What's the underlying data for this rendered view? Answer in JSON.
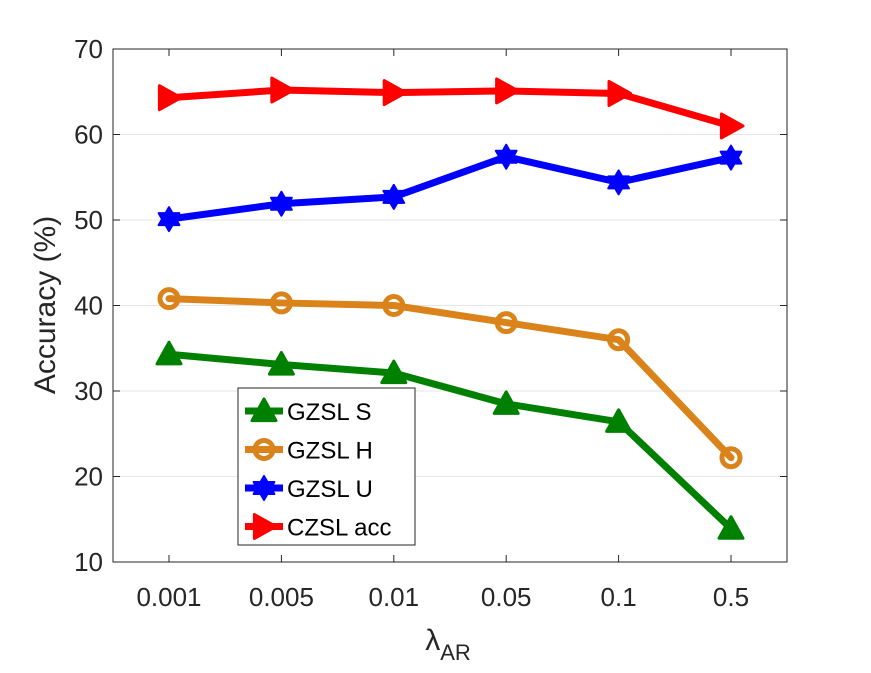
{
  "chart_data": {
    "type": "line",
    "categories": [
      "0.001",
      "0.005",
      "0.01",
      "0.05",
      "0.1",
      "0.5"
    ],
    "ylabel": "Accuracy (%)",
    "xlabel": {
      "base": "λ",
      "subscript": "AR"
    },
    "ylim": [
      10,
      70
    ],
    "yticks": [
      "10",
      "20",
      "30",
      "40",
      "50",
      "60",
      "70"
    ],
    "grid": "horizontal",
    "legend_position": "lower-left",
    "series": [
      {
        "name": "GZSL S",
        "color": "#008000",
        "marker": "triangle-up",
        "values": [
          34.3,
          33.1,
          32.1,
          28.5,
          26.4,
          13.9
        ]
      },
      {
        "name": "GZSL H",
        "color": "#D9831A",
        "marker": "circle",
        "values": [
          40.8,
          40.3,
          40.0,
          38.0,
          36.0,
          22.2
        ]
      },
      {
        "name": "GZSL U",
        "color": "#0000FF",
        "marker": "hexagram",
        "values": [
          50.1,
          51.9,
          52.7,
          57.4,
          54.4,
          57.3
        ]
      },
      {
        "name": "CZSL acc",
        "color": "#FF0000",
        "marker": "triangle-right",
        "values": [
          64.3,
          65.2,
          64.9,
          65.1,
          64.8,
          61.0
        ]
      }
    ]
  }
}
